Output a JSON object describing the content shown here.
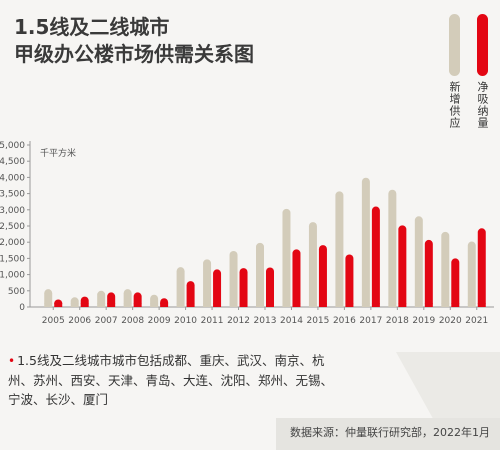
{
  "title_line1": "1.5线及二线城市",
  "title_line2": "甲级办公楼市场供需关系图",
  "unit_label": "千平方米",
  "note": "1.5线及二线城市城市包括成都、重庆、武汉、南京、杭州、苏州、西安、天津、青岛、大连、沈阳、郑州、无锡、宁波、长沙、厦门",
  "source": "数据来源：仲量联行研究部，2022年1月",
  "colors": {
    "supply": "#d3ccba",
    "absorption": "#e30613",
    "axis": "#999999"
  },
  "chart_data": {
    "type": "bar",
    "categories": [
      "2005",
      "2006",
      "2007",
      "2008",
      "2009",
      "2010",
      "2011",
      "2012",
      "2013",
      "2014",
      "2015",
      "2016",
      "2017",
      "2018",
      "2019",
      "2020",
      "2021"
    ],
    "series": [
      {
        "name": "新增供应",
        "values": [
          550,
          300,
          500,
          550,
          380,
          1230,
          1470,
          1730,
          1980,
          3030,
          2620,
          3570,
          3990,
          3620,
          2800,
          2320,
          2020
        ]
      },
      {
        "name": "净吸纳量",
        "values": [
          230,
          320,
          450,
          450,
          270,
          800,
          1160,
          1200,
          1220,
          1780,
          1910,
          1620,
          3100,
          2520,
          2070,
          1500,
          2430
        ]
      }
    ],
    "yticks": [
      "0",
      "500",
      "1,000",
      "1,500",
      "2,000",
      "2,500",
      "3,000",
      "3,500",
      "4,000",
      "4,500",
      "5,000"
    ],
    "ylim": [
      0,
      5000
    ],
    "ylabel": "千平方米",
    "legend_position": "top-right",
    "grid": false
  }
}
